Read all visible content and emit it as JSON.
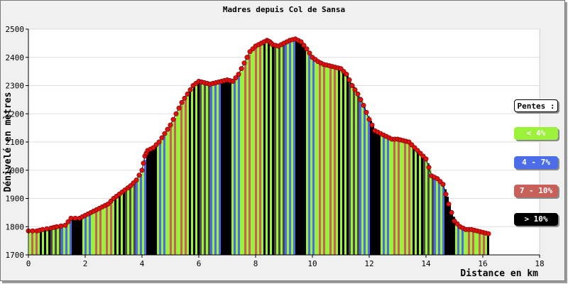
{
  "chart_data": {
    "type": "area",
    "title": "Madres depuis Col de Sansa",
    "xlabel": "Distance en km",
    "ylabel": "Dénivelé en mètres",
    "xlim": [
      0,
      18
    ],
    "ylim": [
      1700,
      2500
    ],
    "x_ticks": [
      "0",
      "2",
      "4",
      "6",
      "8",
      "10",
      "12",
      "14",
      "16",
      "18"
    ],
    "y_ticks": [
      "1700",
      "1800",
      "1900",
      "2000",
      "2100",
      "2200",
      "2300",
      "2400",
      "2500"
    ],
    "grid": true,
    "series": [
      {
        "x": [
          0,
          0.3,
          0.5,
          0.8,
          1.0,
          1.3,
          1.5,
          1.8,
          2.0,
          2.2,
          2.4,
          2.6,
          2.8,
          3.0,
          3.2,
          3.4,
          3.6,
          3.8,
          4.0,
          4.1,
          4.2,
          4.4,
          4.6,
          4.8,
          5.0,
          5.2,
          5.4,
          5.6,
          5.8,
          6.0,
          6.2,
          6.4,
          6.6,
          6.8,
          7.0,
          7.2,
          7.4,
          7.6,
          7.8,
          8.0,
          8.2,
          8.4,
          8.5,
          8.6,
          8.8,
          9.0,
          9.2,
          9.4,
          9.6,
          9.8,
          10.0,
          10.2,
          10.4,
          10.6,
          10.8,
          11.0,
          11.2,
          11.4,
          11.6,
          11.8,
          12.0,
          12.2,
          12.4,
          12.6,
          12.8,
          13.0,
          13.2,
          13.4,
          13.6,
          13.8,
          14.0,
          14.2,
          14.4,
          14.6,
          14.8,
          15.0,
          15.2,
          15.4,
          15.6,
          15.8,
          16.0,
          16.2
        ],
        "y": [
          1785,
          1785,
          1790,
          1795,
          1800,
          1805,
          1830,
          1830,
          1840,
          1850,
          1860,
          1870,
          1880,
          1900,
          1915,
          1930,
          1945,
          1965,
          2000,
          2050,
          2070,
          2080,
          2100,
          2130,
          2160,
          2200,
          2240,
          2270,
          2300,
          2315,
          2310,
          2305,
          2310,
          2315,
          2320,
          2315,
          2340,
          2380,
          2420,
          2440,
          2450,
          2460,
          2455,
          2445,
          2440,
          2450,
          2460,
          2465,
          2455,
          2430,
          2400,
          2385,
          2375,
          2370,
          2365,
          2360,
          2340,
          2300,
          2270,
          2230,
          2180,
          2140,
          2130,
          2120,
          2110,
          2110,
          2105,
          2100,
          2080,
          2060,
          2040,
          1980,
          1970,
          1950,
          1880,
          1820,
          1800,
          1790,
          1790,
          1785,
          1780,
          1775
        ],
        "palette": [
          "#9cf13a",
          "#9cf13a",
          "#4a4a4a",
          "#9cf13a",
          "#000000",
          "#4b6ee8",
          "#9cf13a",
          "#c8605a",
          "#000000",
          "#9cf13a",
          "#4b6ee8",
          "#000000",
          "#9cf13a",
          "#c8605a"
        ]
      }
    ],
    "legend": {
      "title": "Pentes :",
      "placement": "right",
      "entries": [
        {
          "label": "< 4%",
          "color": "#9cf13a"
        },
        {
          "label": "4 - 7%",
          "color": "#4b6ee8"
        },
        {
          "label": "7 - 10%",
          "color": "#c8605a"
        },
        {
          "label": "> 10%",
          "color": "#000000"
        }
      ]
    },
    "marker_color": "#e01010"
  }
}
